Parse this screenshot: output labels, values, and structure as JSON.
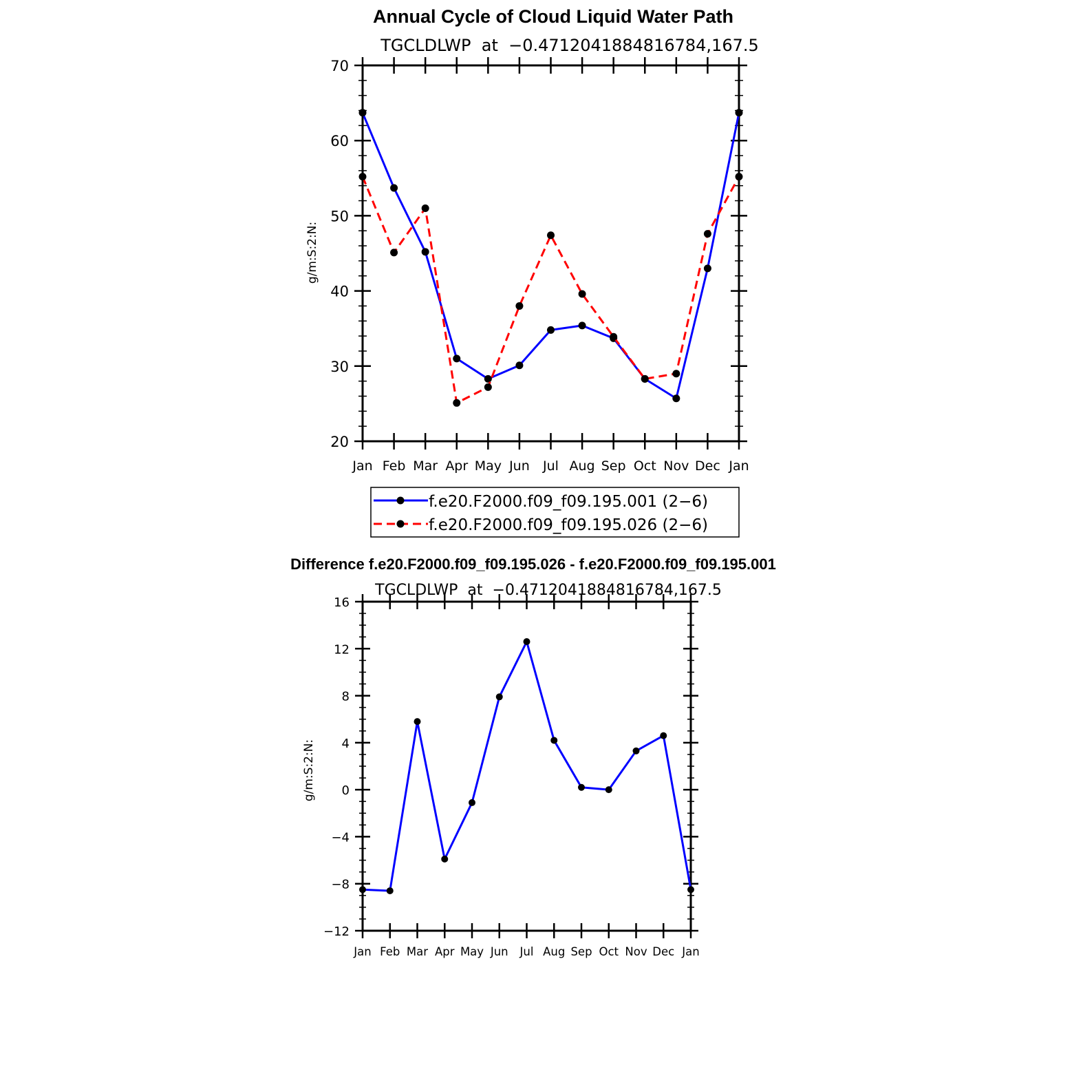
{
  "colors": {
    "series1": "#0000ff",
    "series2": "#ff0000",
    "diff": "#0000ff",
    "marker": "#000000",
    "axis": "#000000"
  },
  "chart_data": [
    {
      "type": "line",
      "title": "Annual Cycle of Cloud Liquid Water Path",
      "subtitle": "TGCLDLWP  at  −0.4712041884816784,167.5",
      "xlabel": "",
      "ylabel": "g/m:S:2:N:",
      "ylim": [
        20,
        70
      ],
      "yticks": [
        20,
        30,
        40,
        50,
        60,
        70
      ],
      "categories": [
        "Jan",
        "Feb",
        "Mar",
        "Apr",
        "May",
        "Jun",
        "Jul",
        "Aug",
        "Sep",
        "Oct",
        "Nov",
        "Dec",
        "Jan"
      ],
      "legend_position": "bottom",
      "series": [
        {
          "name": "f.e20.F2000.f09_f09.195.001 (2−6)",
          "style": "solid",
          "values": [
            63.7,
            53.7,
            45.2,
            31.0,
            28.3,
            30.1,
            34.8,
            35.4,
            33.7,
            28.3,
            25.7,
            43.0,
            63.7
          ]
        },
        {
          "name": "f.e20.F2000.f09_f09.195.026 (2−6)",
          "style": "dashed",
          "values": [
            55.2,
            45.1,
            51.0,
            25.1,
            27.2,
            38.0,
            47.4,
            39.6,
            33.9,
            28.3,
            29.0,
            47.6,
            55.2
          ]
        }
      ]
    },
    {
      "type": "line",
      "title": "Difference f.e20.F2000.f09_f09.195.026 - f.e20.F2000.f09_f09.195.001",
      "subtitle": "TGCLDLWP  at  −0.4712041884816784,167.5",
      "xlabel": "",
      "ylabel": "g/m:S:2:N:",
      "ylim": [
        -12,
        16
      ],
      "yticks": [
        -12,
        -8,
        -4,
        0,
        4,
        8,
        12,
        16
      ],
      "ytick_labels": [
        "−12",
        "−8",
        "−4",
        "0",
        "4",
        "8",
        "12",
        "16"
      ],
      "categories": [
        "Jan",
        "Feb",
        "Mar",
        "Apr",
        "May",
        "Jun",
        "Jul",
        "Aug",
        "Sep",
        "Oct",
        "Nov",
        "Dec",
        "Jan"
      ],
      "series": [
        {
          "name": "difference",
          "style": "solid",
          "values": [
            -8.5,
            -8.6,
            5.8,
            -5.9,
            -1.1,
            7.9,
            12.6,
            4.2,
            0.2,
            0.0,
            3.3,
            4.6,
            -8.5
          ]
        }
      ]
    }
  ]
}
